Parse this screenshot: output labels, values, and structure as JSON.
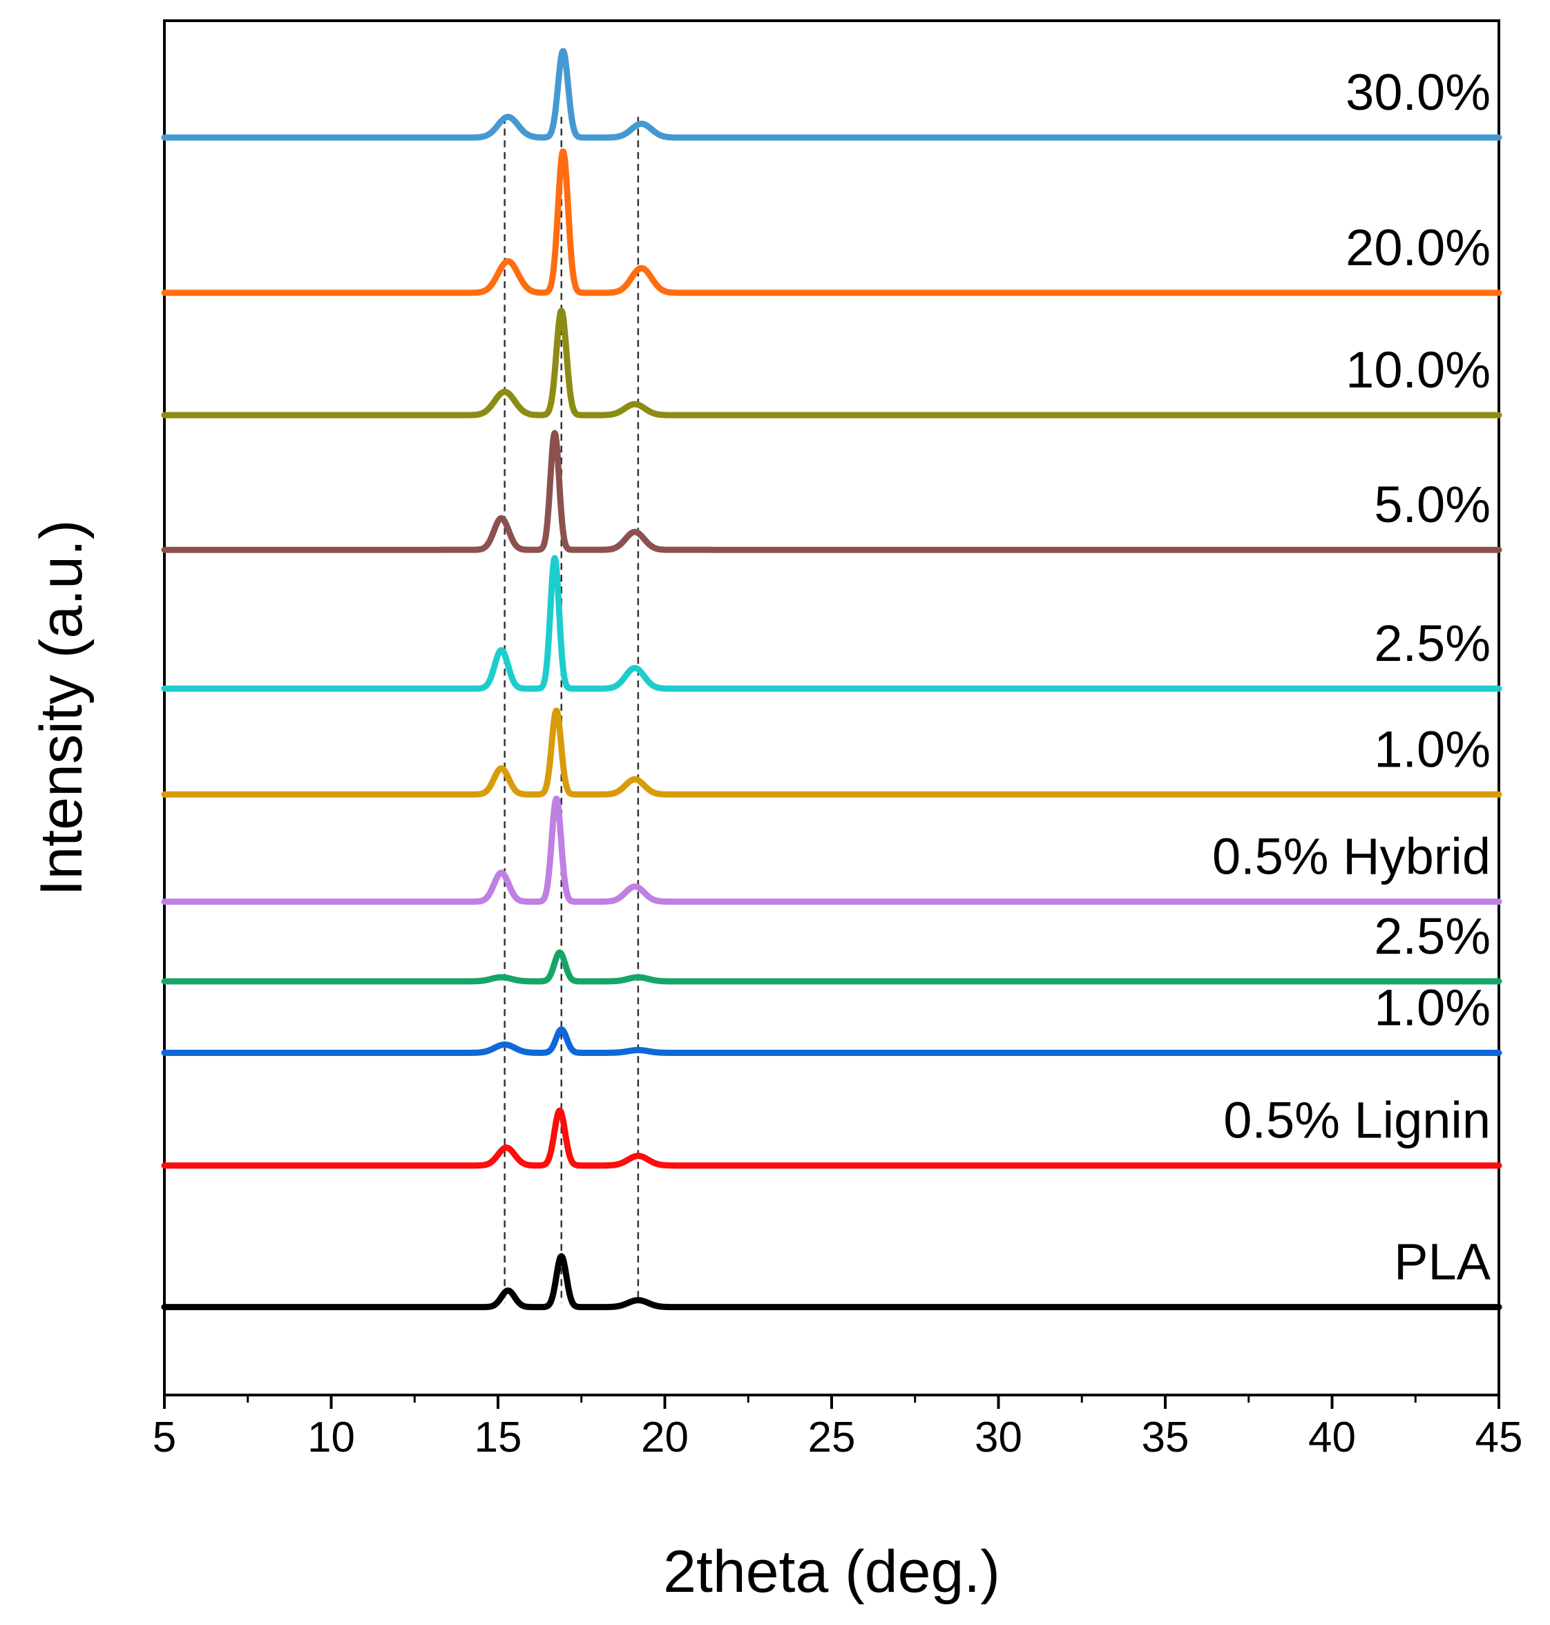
{
  "chart_data": {
    "type": "line",
    "title": "",
    "xlabel": "2theta (deg.)",
    "ylabel": "Intensity (a.u.)",
    "xlim": [
      5,
      45
    ],
    "ylim": [
      0,
      100
    ],
    "x_ticks": [
      5,
      10,
      15,
      20,
      25,
      30,
      35,
      40,
      45
    ],
    "grid": false,
    "legend": "inline labels at right end of each trace",
    "reference_lines_2theta": [
      15.2,
      16.9,
      19.2
    ],
    "series": [
      {
        "name": "30.0%",
        "color": "#4699d0",
        "baseline": 91.5,
        "peaks": [
          {
            "x": 15.3,
            "height": 1.5,
            "width": 0.3
          },
          {
            "x": 16.95,
            "height": 6.3,
            "width": 0.15
          },
          {
            "x": 19.3,
            "height": 1.0,
            "width": 0.3
          }
        ]
      },
      {
        "name": "20.0%",
        "color": "#ff6d10",
        "baseline": 80.2,
        "peaks": [
          {
            "x": 15.3,
            "height": 2.3,
            "width": 0.3
          },
          {
            "x": 16.95,
            "height": 10.3,
            "width": 0.15
          },
          {
            "x": 19.3,
            "height": 1.8,
            "width": 0.3
          }
        ]
      },
      {
        "name": "10.0%",
        "color": "#8c8c14",
        "baseline": 71.3,
        "peaks": [
          {
            "x": 15.2,
            "height": 1.7,
            "width": 0.3
          },
          {
            "x": 16.9,
            "height": 7.6,
            "width": 0.15
          },
          {
            "x": 19.1,
            "height": 0.8,
            "width": 0.3
          }
        ]
      },
      {
        "name": "5.0%",
        "color": "#8c514f",
        "baseline": 61.5,
        "peaks": [
          {
            "x": 15.1,
            "height": 2.3,
            "width": 0.22
          },
          {
            "x": 16.7,
            "height": 8.5,
            "width": 0.13
          },
          {
            "x": 19.1,
            "height": 1.3,
            "width": 0.28
          }
        ]
      },
      {
        "name": "2.5%",
        "color": "#1dcdcd",
        "baseline": 51.4,
        "peaks": [
          {
            "x": 15.1,
            "height": 2.8,
            "width": 0.2
          },
          {
            "x": 16.7,
            "height": 9.5,
            "width": 0.13
          },
          {
            "x": 19.1,
            "height": 1.5,
            "width": 0.28
          }
        ]
      },
      {
        "name": "1.0%",
        "color": "#d89b0a",
        "baseline": 43.7,
        "peaks": [
          {
            "x": 15.1,
            "height": 1.9,
            "width": 0.22
          },
          {
            "x": 16.75,
            "height": 6.1,
            "width": 0.14
          },
          {
            "x": 19.1,
            "height": 1.1,
            "width": 0.28
          }
        ]
      },
      {
        "name": "0.5% Hybrid",
        "color": "#bf7fe3",
        "baseline": 35.9,
        "peaks": [
          {
            "x": 15.1,
            "height": 2.1,
            "width": 0.22
          },
          {
            "x": 16.75,
            "height": 7.5,
            "width": 0.14
          },
          {
            "x": 19.1,
            "height": 1.1,
            "width": 0.28
          }
        ]
      },
      {
        "name": "2.5%",
        "color": "#15a667",
        "baseline": 30.1,
        "peaks": [
          {
            "x": 15.1,
            "height": 0.3,
            "width": 0.3
          },
          {
            "x": 16.85,
            "height": 2.1,
            "width": 0.16
          },
          {
            "x": 19.2,
            "height": 0.3,
            "width": 0.3
          }
        ]
      },
      {
        "name": "1.0%",
        "color": "#0f68d8",
        "baseline": 24.9,
        "peaks": [
          {
            "x": 15.2,
            "height": 0.6,
            "width": 0.3
          },
          {
            "x": 16.9,
            "height": 1.7,
            "width": 0.16
          },
          {
            "x": 19.2,
            "height": 0.2,
            "width": 0.3
          }
        ]
      },
      {
        "name": "0.5% Lignin",
        "color": "#ff0c0c",
        "baseline": 16.7,
        "peaks": [
          {
            "x": 15.25,
            "height": 1.3,
            "width": 0.25
          },
          {
            "x": 16.85,
            "height": 4.0,
            "width": 0.16
          },
          {
            "x": 19.2,
            "height": 0.7,
            "width": 0.3
          }
        ]
      },
      {
        "name": "PLA",
        "color": "#000000",
        "baseline": 6.4,
        "peaks": [
          {
            "x": 15.3,
            "height": 1.2,
            "width": 0.2
          },
          {
            "x": 16.9,
            "height": 3.7,
            "width": 0.15
          },
          {
            "x": 19.2,
            "height": 0.5,
            "width": 0.3
          }
        ]
      }
    ]
  }
}
